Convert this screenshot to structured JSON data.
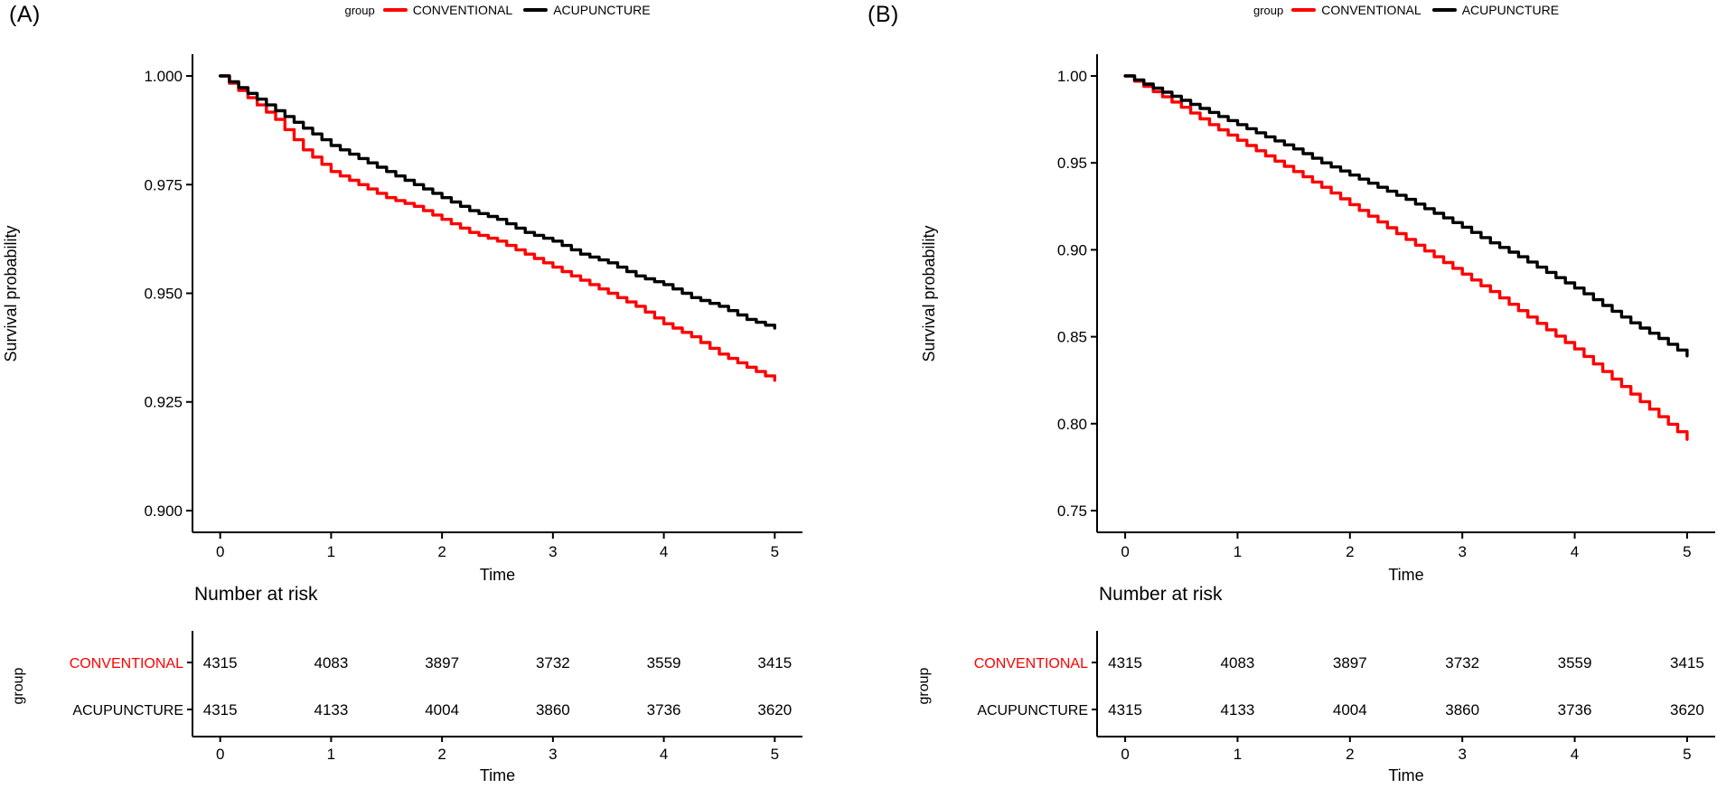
{
  "colors": {
    "conventional_red": "#FF0000",
    "acupuncture_black": "#000000",
    "background": "#FFFFFF"
  },
  "chart_data": [
    {
      "type": "line",
      "subtype": "kaplan-meier-survival",
      "panel_label": "(A)",
      "legend": {
        "title": "group",
        "position": "top",
        "entries": [
          {
            "name": "CONVENTIONAL",
            "color": "#FF0000"
          },
          {
            "name": "ACUPUNCTURE",
            "color": "#000000"
          }
        ]
      },
      "xlabel": "Time",
      "ylabel": "Survival probability",
      "xlim": [
        -0.25,
        5.25
      ],
      "ylim": [
        0.895,
        1.005
      ],
      "grid": false,
      "xticks": [
        0,
        1,
        2,
        3,
        4,
        5
      ],
      "yticks": [
        1.0,
        0.975,
        0.95,
        0.925,
        0.9
      ],
      "ytick_labels": [
        "1.000",
        "0.975",
        "0.950",
        "0.925",
        "0.900"
      ],
      "times": [
        0,
        0.25,
        0.5,
        0.75,
        1,
        1.25,
        1.5,
        1.75,
        2,
        2.25,
        2.5,
        2.75,
        3,
        3.25,
        3.5,
        3.75,
        4,
        4.25,
        4.5,
        4.75,
        5
      ],
      "series": [
        {
          "name": "CONVENTIONAL",
          "color": "#FF0000",
          "values": [
            1.0,
            0.995,
            0.99,
            0.983,
            0.978,
            0.975,
            0.972,
            0.97,
            0.967,
            0.964,
            0.962,
            0.959,
            0.956,
            0.953,
            0.95,
            0.947,
            0.943,
            0.94,
            0.936,
            0.933,
            0.93
          ]
        },
        {
          "name": "ACUPUNCTURE",
          "color": "#000000",
          "values": [
            1.0,
            0.996,
            0.992,
            0.988,
            0.984,
            0.981,
            0.978,
            0.975,
            0.972,
            0.969,
            0.967,
            0.964,
            0.962,
            0.959,
            0.957,
            0.954,
            0.952,
            0.949,
            0.947,
            0.944,
            0.942
          ]
        }
      ],
      "risk_table": {
        "title": "Number at risk",
        "group_axis_label": "group",
        "xlabel": "Time",
        "xticks": [
          0,
          1,
          2,
          3,
          4,
          5
        ],
        "rows": [
          {
            "name": "CONVENTIONAL",
            "color": "#FF0000",
            "values": [
              4315,
              4083,
              3897,
              3732,
              3559,
              3415
            ]
          },
          {
            "name": "ACUPUNCTURE",
            "color": "#000000",
            "values": [
              4315,
              4133,
              4004,
              3860,
              3736,
              3620
            ]
          }
        ]
      }
    },
    {
      "type": "line",
      "subtype": "kaplan-meier-survival",
      "panel_label": "(B)",
      "legend": {
        "title": "group",
        "position": "top",
        "entries": [
          {
            "name": "CONVENTIONAL",
            "color": "#FF0000"
          },
          {
            "name": "ACUPUNCTURE",
            "color": "#000000"
          }
        ]
      },
      "xlabel": "Time",
      "ylabel": "Survival probability",
      "xlim": [
        -0.25,
        5.25
      ],
      "ylim": [
        0.7375,
        1.0125
      ],
      "grid": false,
      "xticks": [
        0,
        1,
        2,
        3,
        4,
        5
      ],
      "yticks": [
        1.0,
        0.95,
        0.9,
        0.85,
        0.8,
        0.75
      ],
      "ytick_labels": [
        "1.00",
        "0.95",
        "0.90",
        "0.85",
        "0.80",
        "0.75"
      ],
      "times": [
        0,
        0.25,
        0.5,
        0.75,
        1,
        1.25,
        1.5,
        1.75,
        2,
        2.25,
        2.5,
        2.75,
        3,
        3.25,
        3.5,
        3.75,
        4,
        4.25,
        4.5,
        4.75,
        5
      ],
      "series": [
        {
          "name": "CONVENTIONAL",
          "color": "#FF0000",
          "values": [
            1.0,
            0.991,
            0.982,
            0.972,
            0.963,
            0.954,
            0.945,
            0.936,
            0.926,
            0.916,
            0.906,
            0.896,
            0.886,
            0.876,
            0.865,
            0.854,
            0.843,
            0.83,
            0.817,
            0.804,
            0.791
          ]
        },
        {
          "name": "ACUPUNCTURE",
          "color": "#000000",
          "values": [
            1.0,
            0.993,
            0.986,
            0.979,
            0.972,
            0.965,
            0.958,
            0.95,
            0.943,
            0.936,
            0.929,
            0.921,
            0.913,
            0.904,
            0.896,
            0.887,
            0.878,
            0.868,
            0.858,
            0.849,
            0.839
          ]
        }
      ],
      "risk_table": {
        "title": "Number at risk",
        "group_axis_label": "group",
        "xlabel": "Time",
        "xticks": [
          0,
          1,
          2,
          3,
          4,
          5
        ],
        "rows": [
          {
            "name": "CONVENTIONAL",
            "color": "#FF0000",
            "values": [
              4315,
              4083,
              3897,
              3732,
              3559,
              3415
            ]
          },
          {
            "name": "ACUPUNCTURE",
            "color": "#000000",
            "values": [
              4315,
              4133,
              4004,
              3860,
              3736,
              3620
            ]
          }
        ]
      }
    }
  ]
}
